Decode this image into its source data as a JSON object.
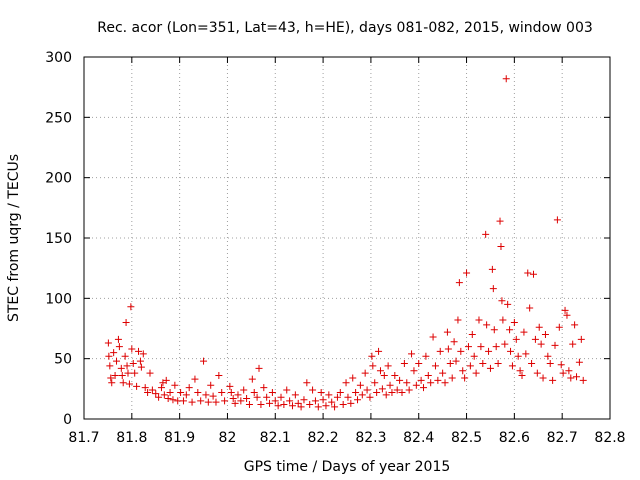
{
  "chart_data": {
    "type": "scatter",
    "title": "Rec. acor (Lon=351, Lat=43, h=HE), days 081-082, 2015, window 003",
    "xlabel": "GPS time / Days of year 2015",
    "ylabel": "STEC from uqrg / TECUs",
    "xlim": [
      81.7,
      82.8
    ],
    "ylim": [
      0,
      300
    ],
    "xticks": [
      "81.7",
      "81.8",
      "81.9",
      "82",
      "82.1",
      "82.2",
      "82.3",
      "82.4",
      "82.5",
      "82.6",
      "82.7",
      "82.8"
    ],
    "yticks": [
      "0",
      "50",
      "100",
      "150",
      "200",
      "250",
      "300"
    ],
    "grid": true,
    "marker": "+",
    "color": "#dd0000",
    "series": [
      {
        "name": "STEC",
        "points": [
          [
            81.751,
            63
          ],
          [
            81.752,
            52
          ],
          [
            81.754,
            44
          ],
          [
            81.756,
            34
          ],
          [
            81.758,
            30
          ],
          [
            81.762,
            55
          ],
          [
            81.765,
            36
          ],
          [
            81.768,
            48
          ],
          [
            81.772,
            66
          ],
          [
            81.774,
            60
          ],
          [
            81.778,
            42
          ],
          [
            81.78,
            36
          ],
          [
            81.782,
            30
          ],
          [
            81.786,
            52
          ],
          [
            81.788,
            80
          ],
          [
            81.79,
            44
          ],
          [
            81.792,
            38
          ],
          [
            81.795,
            29
          ],
          [
            81.798,
            93
          ],
          [
            81.8,
            58
          ],
          [
            81.803,
            46
          ],
          [
            81.806,
            38
          ],
          [
            81.81,
            27
          ],
          [
            81.814,
            56
          ],
          [
            81.818,
            48
          ],
          [
            81.82,
            43
          ],
          [
            81.824,
            54
          ],
          [
            81.828,
            26
          ],
          [
            81.833,
            22
          ],
          [
            81.838,
            38
          ],
          [
            81.843,
            24
          ],
          [
            81.85,
            21
          ],
          [
            81.856,
            18
          ],
          [
            81.862,
            26
          ],
          [
            81.865,
            30
          ],
          [
            81.868,
            20
          ],
          [
            81.872,
            32
          ],
          [
            81.876,
            17
          ],
          [
            81.88,
            22
          ],
          [
            81.886,
            16
          ],
          [
            81.89,
            28
          ],
          [
            81.896,
            15
          ],
          [
            81.902,
            22
          ],
          [
            81.908,
            15
          ],
          [
            81.914,
            20
          ],
          [
            81.92,
            26
          ],
          [
            81.926,
            14
          ],
          [
            81.932,
            33
          ],
          [
            81.938,
            22
          ],
          [
            81.944,
            15
          ],
          [
            81.95,
            48
          ],
          [
            81.955,
            20
          ],
          [
            81.96,
            14
          ],
          [
            81.965,
            28
          ],
          [
            81.97,
            19
          ],
          [
            81.976,
            14
          ],
          [
            81.982,
            36
          ],
          [
            81.988,
            22
          ],
          [
            81.994,
            15
          ],
          [
            82.005,
            27
          ],
          [
            82.008,
            22
          ],
          [
            82.012,
            17
          ],
          [
            82.016,
            13
          ],
          [
            82.022,
            20
          ],
          [
            82.028,
            15
          ],
          [
            82.034,
            24
          ],
          [
            82.04,
            17
          ],
          [
            82.046,
            12
          ],
          [
            82.052,
            33
          ],
          [
            82.056,
            22
          ],
          [
            82.062,
            18
          ],
          [
            82.066,
            42
          ],
          [
            82.07,
            12
          ],
          [
            82.076,
            26
          ],
          [
            82.082,
            18
          ],
          [
            82.088,
            13
          ],
          [
            82.094,
            22
          ],
          [
            82.1,
            15
          ],
          [
            82.106,
            11
          ],
          [
            82.112,
            18
          ],
          [
            82.118,
            12
          ],
          [
            82.124,
            24
          ],
          [
            82.13,
            15
          ],
          [
            82.136,
            11
          ],
          [
            82.142,
            20
          ],
          [
            82.148,
            13
          ],
          [
            82.154,
            10
          ],
          [
            82.16,
            16
          ],
          [
            82.166,
            30
          ],
          [
            82.172,
            12
          ],
          [
            82.178,
            24
          ],
          [
            82.184,
            15
          ],
          [
            82.19,
            10
          ],
          [
            82.196,
            22
          ],
          [
            82.2,
            16
          ],
          [
            82.206,
            11
          ],
          [
            82.212,
            20
          ],
          [
            82.218,
            14
          ],
          [
            82.224,
            10
          ],
          [
            82.23,
            18
          ],
          [
            82.236,
            22
          ],
          [
            82.242,
            12
          ],
          [
            82.248,
            30
          ],
          [
            82.252,
            18
          ],
          [
            82.258,
            13
          ],
          [
            82.262,
            34
          ],
          [
            82.268,
            22
          ],
          [
            82.272,
            16
          ],
          [
            82.278,
            28
          ],
          [
            82.282,
            20
          ],
          [
            82.288,
            38
          ],
          [
            82.292,
            24
          ],
          [
            82.298,
            18
          ],
          [
            82.302,
            52
          ],
          [
            82.304,
            44
          ],
          [
            82.308,
            30
          ],
          [
            82.312,
            22
          ],
          [
            82.316,
            56
          ],
          [
            82.32,
            40
          ],
          [
            82.324,
            25
          ],
          [
            82.328,
            36
          ],
          [
            82.332,
            20
          ],
          [
            82.336,
            44
          ],
          [
            82.34,
            28
          ],
          [
            82.344,
            22
          ],
          [
            82.35,
            36
          ],
          [
            82.355,
            24
          ],
          [
            82.36,
            32
          ],
          [
            82.365,
            22
          ],
          [
            82.37,
            46
          ],
          [
            82.375,
            30
          ],
          [
            82.38,
            24
          ],
          [
            82.385,
            54
          ],
          [
            82.39,
            40
          ],
          [
            82.395,
            28
          ],
          [
            82.4,
            46
          ],
          [
            82.405,
            32
          ],
          [
            82.41,
            26
          ],
          [
            82.415,
            52
          ],
          [
            82.42,
            36
          ],
          [
            82.425,
            30
          ],
          [
            82.43,
            68
          ],
          [
            82.435,
            44
          ],
          [
            82.44,
            32
          ],
          [
            82.445,
            56
          ],
          [
            82.45,
            38
          ],
          [
            82.455,
            30
          ],
          [
            82.46,
            72
          ],
          [
            82.462,
            58
          ],
          [
            82.466,
            46
          ],
          [
            82.47,
            34
          ],
          [
            82.474,
            64
          ],
          [
            82.478,
            48
          ],
          [
            82.482,
            82
          ],
          [
            82.485,
            113
          ],
          [
            82.488,
            56
          ],
          [
            82.492,
            40
          ],
          [
            82.496,
            34
          ],
          [
            82.5,
            121
          ],
          [
            82.504,
            60
          ],
          [
            82.508,
            44
          ],
          [
            82.512,
            70
          ],
          [
            82.516,
            52
          ],
          [
            82.52,
            38
          ],
          [
            82.526,
            82
          ],
          [
            82.53,
            60
          ],
          [
            82.534,
            46
          ],
          [
            82.54,
            153
          ],
          [
            82.542,
            78
          ],
          [
            82.546,
            56
          ],
          [
            82.55,
            42
          ],
          [
            82.554,
            124
          ],
          [
            82.556,
            108
          ],
          [
            82.558,
            74
          ],
          [
            82.562,
            60
          ],
          [
            82.566,
            46
          ],
          [
            82.57,
            164
          ],
          [
            82.572,
            143
          ],
          [
            82.574,
            98
          ],
          [
            82.576,
            82
          ],
          [
            82.58,
            62
          ],
          [
            82.583,
            282
          ],
          [
            82.586,
            95
          ],
          [
            82.59,
            74
          ],
          [
            82.592,
            56
          ],
          [
            82.596,
            44
          ],
          [
            82.6,
            80
          ],
          [
            82.604,
            66
          ],
          [
            82.608,
            52
          ],
          [
            82.612,
            40
          ],
          [
            82.616,
            36
          ],
          [
            82.62,
            72
          ],
          [
            82.624,
            54
          ],
          [
            82.628,
            121
          ],
          [
            82.632,
            92
          ],
          [
            82.636,
            46
          ],
          [
            82.64,
            120
          ],
          [
            82.644,
            66
          ],
          [
            82.648,
            38
          ],
          [
            82.652,
            76
          ],
          [
            82.656,
            62
          ],
          [
            82.66,
            34
          ],
          [
            82.665,
            70
          ],
          [
            82.67,
            52
          ],
          [
            82.675,
            46
          ],
          [
            82.68,
            32
          ],
          [
            82.685,
            61
          ],
          [
            82.69,
            165
          ],
          [
            82.694,
            76
          ],
          [
            82.698,
            45
          ],
          [
            82.702,
            38
          ],
          [
            82.706,
            90
          ],
          [
            82.71,
            86
          ],
          [
            82.714,
            40
          ],
          [
            82.718,
            34
          ],
          [
            82.722,
            62
          ],
          [
            82.726,
            78
          ],
          [
            82.73,
            35
          ],
          [
            82.736,
            47
          ],
          [
            82.74,
            66
          ],
          [
            82.744,
            32
          ]
        ]
      }
    ]
  }
}
